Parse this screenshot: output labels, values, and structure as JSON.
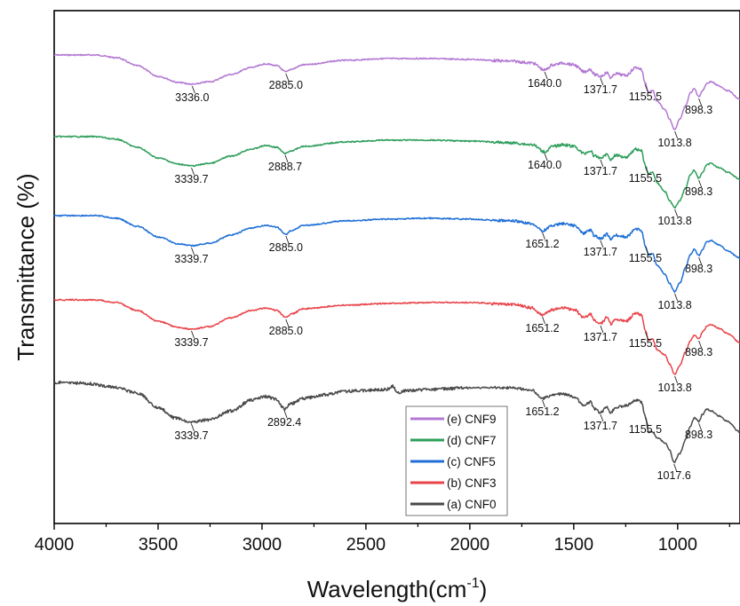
{
  "chart_data": {
    "type": "line",
    "title": "",
    "xlabel": "Wavelength(cm",
    "xlabel_sup": "-1",
    "xlabel_close": ")",
    "ylabel": "Transmittance (%)",
    "xlim": [
      4000,
      700
    ],
    "x_reversed": true,
    "xticks": [
      "4000",
      "3500",
      "3000",
      "2500",
      "2000",
      "1500",
      "1000"
    ],
    "y_tick_labels": false,
    "legend_position": "bottom-center",
    "series": [
      {
        "name": "(e) CNF9",
        "color": "#b378d3",
        "offset": 62,
        "points": [
          [
            4000,
            0
          ],
          [
            3800,
            0
          ],
          [
            3700,
            3
          ],
          [
            3600,
            12
          ],
          [
            3500,
            24
          ],
          [
            3400,
            31
          ],
          [
            3336,
            33
          ],
          [
            3250,
            30
          ],
          [
            3150,
            22
          ],
          [
            3050,
            14
          ],
          [
            2980,
            10
          ],
          [
            2930,
            12
          ],
          [
            2885,
            19
          ],
          [
            2860,
            16
          ],
          [
            2800,
            11
          ],
          [
            2600,
            6
          ],
          [
            2400,
            4
          ],
          [
            2200,
            4
          ],
          [
            2000,
            5
          ],
          [
            1800,
            7
          ],
          [
            1700,
            9
          ],
          [
            1640,
            17
          ],
          [
            1600,
            11
          ],
          [
            1550,
            9
          ],
          [
            1500,
            11
          ],
          [
            1450,
            19
          ],
          [
            1420,
            16
          ],
          [
            1400,
            22
          ],
          [
            1371.7,
            24
          ],
          [
            1340,
            20
          ],
          [
            1320,
            26
          ],
          [
            1300,
            21
          ],
          [
            1250,
            23
          ],
          [
            1200,
            14
          ],
          [
            1175,
            16
          ],
          [
            1155.5,
            32
          ],
          [
            1140,
            42
          ],
          [
            1120,
            40
          ],
          [
            1100,
            52
          ],
          [
            1060,
            62
          ],
          [
            1040,
            72
          ],
          [
            1013.8,
            84
          ],
          [
            990,
            72
          ],
          [
            960,
            57
          ],
          [
            940,
            43
          ],
          [
            920,
            38
          ],
          [
            898.3,
            47
          ],
          [
            880,
            40
          ],
          [
            860,
            32
          ],
          [
            840,
            30
          ],
          [
            800,
            35
          ],
          [
            760,
            40
          ],
          [
            700,
            50
          ]
        ],
        "peaks": [
          {
            "label": "3336.0",
            "x": 3336
          },
          {
            "label": "2885.0",
            "x": 2885
          },
          {
            "label": "1640.0",
            "x": 1640
          },
          {
            "label": "1371.7",
            "x": 1371.7
          },
          {
            "label": "1155.5",
            "x": 1155.5
          },
          {
            "label": "1013.8",
            "x": 1013.8
          },
          {
            "label": "898.3",
            "x": 898.3
          }
        ]
      },
      {
        "name": "(d) CNF7",
        "color": "#2e9e5b",
        "offset": 154,
        "points": [
          [
            4000,
            0
          ],
          [
            3800,
            0
          ],
          [
            3700,
            3
          ],
          [
            3600,
            12
          ],
          [
            3500,
            24
          ],
          [
            3400,
            31
          ],
          [
            3339.7,
            33
          ],
          [
            3250,
            30
          ],
          [
            3150,
            22
          ],
          [
            3050,
            14
          ],
          [
            2980,
            10
          ],
          [
            2930,
            12
          ],
          [
            2888.7,
            19
          ],
          [
            2860,
            16
          ],
          [
            2800,
            11
          ],
          [
            2600,
            6
          ],
          [
            2400,
            4
          ],
          [
            2200,
            4
          ],
          [
            2000,
            5
          ],
          [
            1800,
            7
          ],
          [
            1700,
            9
          ],
          [
            1640,
            17
          ],
          [
            1600,
            11
          ],
          [
            1550,
            9
          ],
          [
            1500,
            11
          ],
          [
            1450,
            19
          ],
          [
            1420,
            16
          ],
          [
            1400,
            22
          ],
          [
            1371.7,
            24
          ],
          [
            1340,
            20
          ],
          [
            1320,
            26
          ],
          [
            1300,
            21
          ],
          [
            1250,
            23
          ],
          [
            1200,
            14
          ],
          [
            1175,
            16
          ],
          [
            1155.5,
            32
          ],
          [
            1140,
            42
          ],
          [
            1120,
            40
          ],
          [
            1100,
            52
          ],
          [
            1060,
            62
          ],
          [
            1040,
            72
          ],
          [
            1013.8,
            80
          ],
          [
            990,
            72
          ],
          [
            960,
            57
          ],
          [
            940,
            43
          ],
          [
            920,
            38
          ],
          [
            898.3,
            47
          ],
          [
            880,
            40
          ],
          [
            860,
            32
          ],
          [
            840,
            30
          ],
          [
            800,
            35
          ],
          [
            760,
            40
          ],
          [
            700,
            48
          ]
        ],
        "peaks": [
          {
            "label": "3339.7",
            "x": 3339.7
          },
          {
            "label": "2888.7",
            "x": 2888.7
          },
          {
            "label": "1640.0",
            "x": 1640
          },
          {
            "label": "1371.7",
            "x": 1371.7
          },
          {
            "label": "1155.5",
            "x": 1155.5
          },
          {
            "label": "1013.8",
            "x": 1013.8
          },
          {
            "label": "898.3",
            "x": 898.3
          }
        ]
      },
      {
        "name": "(c) CNF5",
        "color": "#1f6fd6",
        "offset": 243,
        "points": [
          [
            4000,
            0
          ],
          [
            3800,
            0
          ],
          [
            3700,
            3
          ],
          [
            3600,
            12
          ],
          [
            3500,
            24
          ],
          [
            3400,
            32
          ],
          [
            3339.7,
            34
          ],
          [
            3250,
            31
          ],
          [
            3150,
            22
          ],
          [
            3050,
            14
          ],
          [
            2980,
            11
          ],
          [
            2930,
            13
          ],
          [
            2885,
            21
          ],
          [
            2860,
            17
          ],
          [
            2800,
            11
          ],
          [
            2600,
            6
          ],
          [
            2400,
            4
          ],
          [
            2200,
            3
          ],
          [
            2000,
            4
          ],
          [
            1800,
            6
          ],
          [
            1700,
            9
          ],
          [
            1651.2,
            17
          ],
          [
            1600,
            11
          ],
          [
            1550,
            9
          ],
          [
            1500,
            11
          ],
          [
            1450,
            20
          ],
          [
            1420,
            16
          ],
          [
            1400,
            23
          ],
          [
            1371.7,
            26
          ],
          [
            1340,
            21
          ],
          [
            1320,
            27
          ],
          [
            1300,
            22
          ],
          [
            1250,
            24
          ],
          [
            1200,
            15
          ],
          [
            1175,
            17
          ],
          [
            1155.5,
            33
          ],
          [
            1140,
            44
          ],
          [
            1120,
            43
          ],
          [
            1100,
            56
          ],
          [
            1060,
            66
          ],
          [
            1040,
            76
          ],
          [
            1013.8,
            86
          ],
          [
            990,
            76
          ],
          [
            960,
            58
          ],
          [
            940,
            44
          ],
          [
            920,
            38
          ],
          [
            898.3,
            45
          ],
          [
            880,
            38
          ],
          [
            860,
            30
          ],
          [
            840,
            28
          ],
          [
            800,
            33
          ],
          [
            760,
            40
          ],
          [
            700,
            48
          ]
        ],
        "peaks": [
          {
            "label": "3339.7",
            "x": 3339.7
          },
          {
            "label": "2885.0",
            "x": 2885
          },
          {
            "label": "1651.2",
            "x": 1651.2
          },
          {
            "label": "1371.7",
            "x": 1371.7
          },
          {
            "label": "1155.5",
            "x": 1155.5
          },
          {
            "label": "1013.8",
            "x": 1013.8
          },
          {
            "label": "898.3",
            "x": 898.3
          }
        ]
      },
      {
        "name": "(b) CNF3",
        "color": "#e8444a",
        "offset": 338,
        "points": [
          [
            4000,
            0
          ],
          [
            3800,
            0
          ],
          [
            3700,
            3
          ],
          [
            3600,
            12
          ],
          [
            3500,
            24
          ],
          [
            3400,
            31
          ],
          [
            3339.7,
            33
          ],
          [
            3250,
            30
          ],
          [
            3150,
            20
          ],
          [
            3050,
            12
          ],
          [
            2980,
            9
          ],
          [
            2930,
            12
          ],
          [
            2885,
            20
          ],
          [
            2860,
            16
          ],
          [
            2800,
            10
          ],
          [
            2600,
            6
          ],
          [
            2400,
            4
          ],
          [
            2200,
            3
          ],
          [
            2000,
            3
          ],
          [
            1800,
            5
          ],
          [
            1700,
            9
          ],
          [
            1651.2,
            17
          ],
          [
            1600,
            11
          ],
          [
            1550,
            9
          ],
          [
            1500,
            11
          ],
          [
            1450,
            20
          ],
          [
            1420,
            16
          ],
          [
            1400,
            23
          ],
          [
            1371.7,
            27
          ],
          [
            1340,
            20
          ],
          [
            1320,
            27
          ],
          [
            1300,
            22
          ],
          [
            1250,
            24
          ],
          [
            1200,
            15
          ],
          [
            1175,
            17
          ],
          [
            1155.5,
            34
          ],
          [
            1140,
            46
          ],
          [
            1120,
            44
          ],
          [
            1100,
            56
          ],
          [
            1060,
            62
          ],
          [
            1040,
            72
          ],
          [
            1013.8,
            84
          ],
          [
            990,
            74
          ],
          [
            960,
            58
          ],
          [
            940,
            46
          ],
          [
            920,
            40
          ],
          [
            898.3,
            44
          ],
          [
            880,
            36
          ],
          [
            860,
            30
          ],
          [
            840,
            28
          ],
          [
            800,
            32
          ],
          [
            760,
            38
          ],
          [
            700,
            48
          ]
        ],
        "peaks": [
          {
            "label": "3339.7",
            "x": 3339.7
          },
          {
            "label": "2885.0",
            "x": 2885
          },
          {
            "label": "1651.2",
            "x": 1651.2
          },
          {
            "label": "1371.7",
            "x": 1371.7
          },
          {
            "label": "1155.5",
            "x": 1155.5
          },
          {
            "label": "1013.8",
            "x": 1013.8
          },
          {
            "label": "898.3",
            "x": 898.3
          }
        ]
      },
      {
        "name": "(a) CNF0",
        "color": "#4a4a4a",
        "offset": 431,
        "points": [
          [
            4000,
            0
          ],
          [
            3850,
            1
          ],
          [
            3750,
            4
          ],
          [
            3700,
            6
          ],
          [
            3600,
            12
          ],
          [
            3500,
            28
          ],
          [
            3420,
            40
          ],
          [
            3339.7,
            45
          ],
          [
            3250,
            42
          ],
          [
            3150,
            32
          ],
          [
            3050,
            20
          ],
          [
            2980,
            16
          ],
          [
            2930,
            19
          ],
          [
            2892.4,
            30
          ],
          [
            2860,
            24
          ],
          [
            2800,
            18
          ],
          [
            2700,
            14
          ],
          [
            2600,
            10
          ],
          [
            2500,
            9
          ],
          [
            2400,
            8
          ],
          [
            2370,
            4
          ],
          [
            2350,
            12
          ],
          [
            2300,
            9
          ],
          [
            2200,
            8
          ],
          [
            2000,
            6
          ],
          [
            1800,
            6
          ],
          [
            1700,
            9
          ],
          [
            1651.2,
            18
          ],
          [
            1600,
            14
          ],
          [
            1550,
            13
          ],
          [
            1500,
            16
          ],
          [
            1450,
            26
          ],
          [
            1420,
            22
          ],
          [
            1400,
            30
          ],
          [
            1371.7,
            34
          ],
          [
            1340,
            28
          ],
          [
            1320,
            34
          ],
          [
            1300,
            28
          ],
          [
            1250,
            26
          ],
          [
            1200,
            20
          ],
          [
            1175,
            22
          ],
          [
            1155.5,
            38
          ],
          [
            1140,
            56
          ],
          [
            1120,
            56
          ],
          [
            1100,
            62
          ],
          [
            1060,
            68
          ],
          [
            1040,
            76
          ],
          [
            1017.6,
            90
          ],
          [
            990,
            80
          ],
          [
            960,
            64
          ],
          [
            940,
            50
          ],
          [
            920,
            40
          ],
          [
            898.3,
            44
          ],
          [
            880,
            36
          ],
          [
            860,
            30
          ],
          [
            840,
            32
          ],
          [
            800,
            38
          ],
          [
            760,
            44
          ],
          [
            700,
            56
          ]
        ],
        "peaks": [
          {
            "label": "3339.7",
            "x": 3339.7
          },
          {
            "label": "2892.4",
            "x": 2892.4
          },
          {
            "label": "1651.2",
            "x": 1651.2
          },
          {
            "label": "1371.7",
            "x": 1371.7
          },
          {
            "label": "1155.5",
            "x": 1155.5
          },
          {
            "label": "1017.6",
            "x": 1017.6
          },
          {
            "label": "898.3",
            "x": 898.3
          }
        ]
      }
    ]
  }
}
